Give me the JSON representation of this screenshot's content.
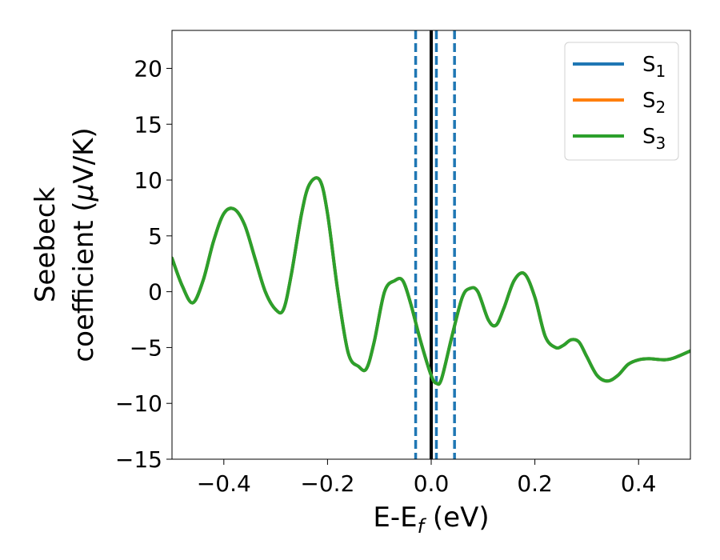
{
  "chart_data": {
    "type": "line",
    "title": "",
    "xlabel": "E-E",
    "xlabel_subscript": "f",
    "xlabel_unit": " (eV)",
    "ylabel_line1": "Seebeck",
    "ylabel_line2_prefix": "coefficient  (",
    "ylabel_mu": "μ",
    "ylabel_line2_suffix": "V/K)",
    "xlim": [
      -0.5,
      0.5
    ],
    "ylim": [
      -15,
      23.4
    ],
    "xticks": [
      -0.4,
      -0.2,
      0.0,
      0.2,
      0.4
    ],
    "xtick_labels": [
      "−0.4",
      "−0.2",
      "0.0",
      "0.2",
      "0.4"
    ],
    "yticks": [
      -15,
      -10,
      -5,
      0,
      5,
      10,
      15,
      20
    ],
    "ytick_labels": [
      "−15",
      "−10",
      "−5",
      "0",
      "5",
      "10",
      "15",
      "20"
    ],
    "grid": false,
    "legend_placement": "top-right",
    "series": [
      {
        "name": "S",
        "subscript": "1",
        "color": "#1f77b4",
        "x": [
          -0.5,
          -0.48,
          -0.46,
          -0.44,
          -0.42,
          -0.4,
          -0.38,
          -0.36,
          -0.34,
          -0.32,
          -0.3,
          -0.285,
          -0.27,
          -0.25,
          -0.235,
          -0.215,
          -0.2,
          -0.18,
          -0.16,
          -0.14,
          -0.125,
          -0.11,
          -0.09,
          -0.07,
          -0.055,
          -0.04,
          -0.02,
          0.0,
          0.01,
          0.02,
          0.04,
          0.06,
          0.075,
          0.09,
          0.11,
          0.125,
          0.14,
          0.16,
          0.18,
          0.2,
          0.22,
          0.24,
          0.255,
          0.27,
          0.285,
          0.3,
          0.32,
          0.34,
          0.36,
          0.38,
          0.4,
          0.42,
          0.45,
          0.47,
          0.5
        ],
        "y": [
          3.0,
          0.5,
          -1.0,
          1.0,
          4.5,
          7.0,
          7.4,
          6.0,
          3.0,
          0.0,
          -1.6,
          -1.6,
          1.5,
          7.0,
          9.6,
          10.0,
          7.0,
          0.0,
          -5.5,
          -6.7,
          -6.9,
          -4.5,
          0.0,
          1.0,
          1.0,
          -1.0,
          -4.5,
          -7.5,
          -8.2,
          -7.8,
          -4.0,
          -0.5,
          0.3,
          0.0,
          -2.5,
          -3.0,
          -1.5,
          1.0,
          1.6,
          -0.5,
          -4.0,
          -5.0,
          -4.8,
          -4.3,
          -4.5,
          -5.8,
          -7.5,
          -8.0,
          -7.5,
          -6.5,
          -6.1,
          -6.0,
          -6.1,
          -5.9,
          -5.3
        ]
      },
      {
        "name": "S",
        "subscript": "2",
        "color": "#ff7f0e",
        "x": [
          -0.5,
          -0.48,
          -0.46,
          -0.44,
          -0.42,
          -0.4,
          -0.38,
          -0.36,
          -0.34,
          -0.32,
          -0.3,
          -0.285,
          -0.27,
          -0.25,
          -0.235,
          -0.215,
          -0.2,
          -0.18,
          -0.16,
          -0.14,
          -0.125,
          -0.11,
          -0.09,
          -0.07,
          -0.055,
          -0.04,
          -0.02,
          0.0,
          0.01,
          0.02,
          0.04,
          0.06,
          0.075,
          0.09,
          0.11,
          0.125,
          0.14,
          0.16,
          0.18,
          0.2,
          0.22,
          0.24,
          0.255,
          0.27,
          0.285,
          0.3,
          0.32,
          0.34,
          0.36,
          0.38,
          0.4,
          0.42,
          0.45,
          0.47,
          0.5
        ],
        "y": [
          3.0,
          0.5,
          -1.0,
          1.0,
          4.5,
          7.0,
          7.4,
          6.0,
          3.0,
          0.0,
          -1.6,
          -1.6,
          1.5,
          7.0,
          9.6,
          10.0,
          7.0,
          0.0,
          -5.5,
          -6.7,
          -6.9,
          -4.5,
          0.0,
          1.0,
          1.0,
          -1.0,
          -4.5,
          -7.5,
          -8.2,
          -7.8,
          -4.0,
          -0.5,
          0.3,
          0.0,
          -2.5,
          -3.0,
          -1.5,
          1.0,
          1.6,
          -0.5,
          -4.0,
          -5.0,
          -4.8,
          -4.3,
          -4.5,
          -5.8,
          -7.5,
          -8.0,
          -7.5,
          -6.5,
          -6.1,
          -6.0,
          -6.1,
          -5.9,
          -5.3
        ]
      },
      {
        "name": "S",
        "subscript": "3",
        "color": "#2ca02c",
        "x": [
          -0.5,
          -0.48,
          -0.46,
          -0.44,
          -0.42,
          -0.4,
          -0.38,
          -0.36,
          -0.34,
          -0.32,
          -0.3,
          -0.285,
          -0.27,
          -0.25,
          -0.235,
          -0.215,
          -0.2,
          -0.18,
          -0.16,
          -0.14,
          -0.125,
          -0.11,
          -0.09,
          -0.07,
          -0.055,
          -0.04,
          -0.02,
          0.0,
          0.01,
          0.02,
          0.04,
          0.06,
          0.075,
          0.09,
          0.11,
          0.125,
          0.14,
          0.16,
          0.18,
          0.2,
          0.22,
          0.24,
          0.255,
          0.27,
          0.285,
          0.3,
          0.32,
          0.34,
          0.36,
          0.38,
          0.4,
          0.42,
          0.45,
          0.47,
          0.5
        ],
        "y": [
          3.0,
          0.5,
          -1.0,
          1.0,
          4.5,
          7.0,
          7.4,
          6.0,
          3.0,
          0.0,
          -1.6,
          -1.6,
          1.5,
          7.0,
          9.6,
          10.0,
          7.0,
          0.0,
          -5.5,
          -6.7,
          -6.9,
          -4.5,
          0.0,
          1.0,
          1.0,
          -1.0,
          -4.5,
          -7.5,
          -8.2,
          -7.8,
          -4.0,
          -0.5,
          0.3,
          0.0,
          -2.5,
          -3.0,
          -1.5,
          1.0,
          1.6,
          -0.5,
          -4.0,
          -5.0,
          -4.8,
          -4.3,
          -4.5,
          -5.8,
          -7.5,
          -8.0,
          -7.5,
          -6.5,
          -6.1,
          -6.0,
          -6.1,
          -5.9,
          -5.3
        ]
      }
    ],
    "vertical_lines": [
      {
        "x": 0.0,
        "style": "solid",
        "color": "#000000"
      },
      {
        "x": -0.03,
        "style": "dashed",
        "color": "#1f77b4"
      },
      {
        "x": 0.01,
        "style": "dashed",
        "color": "#1f77b4"
      },
      {
        "x": 0.045,
        "style": "dashed",
        "color": "#1f77b4"
      }
    ]
  }
}
